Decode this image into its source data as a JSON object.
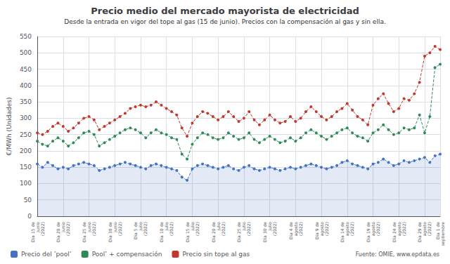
{
  "chart_data": {
    "type": "line",
    "title": "Precio medio del mercado mayorista de electricidad",
    "subtitle": "Desde la entrada en vigor del tope al gas (15 de junio). Precios con la compensación al gas y sin ella.",
    "ylabel": "€/MWh (Unidades)",
    "source": "Fuente: OMIE, www.epdata.es",
    "categories": [
      "Día 15 de\njunio\n(2022)",
      null,
      null,
      null,
      null,
      "Día 20 de\njunio\n(2022)",
      null,
      null,
      null,
      null,
      "Día 25 de\njunio\n(2022)",
      null,
      null,
      null,
      null,
      "Día 30 de\njunio\n(2022)",
      null,
      null,
      null,
      null,
      "Día 5 de\njulio\n(2022)",
      null,
      null,
      null,
      null,
      "Día 10 de\njulio\n(2022)",
      null,
      null,
      null,
      null,
      "Día 15 de\njulio\n(2022)",
      null,
      null,
      null,
      null,
      "Día 20 de\njulio\n(2022)",
      null,
      null,
      null,
      null,
      "Día 25 de\njulio\n(2022)",
      null,
      null,
      null,
      null,
      "Día 30 de\njulio\n(2022)",
      null,
      null,
      null,
      null,
      "Día 4 de\nagosto\n(2022)",
      null,
      null,
      null,
      null,
      "Día 9 de\nagosto\n(2022)",
      null,
      null,
      null,
      null,
      "Día 14 de\nagosto\n(2022)",
      null,
      null,
      null,
      null,
      "Día 19 de\nagosto\n(2022)",
      null,
      null,
      null,
      null,
      "Día 24 de\nagosto\n(2022)",
      null,
      null,
      null,
      null,
      "Día 29 de\nagosto\n(2022)",
      null,
      null,
      "Día 1 de\nseptiembre"
    ],
    "series": [
      {
        "name": "Precio del ’pool’",
        "color": "#4472c4",
        "type": "area",
        "values": [
          160,
          150,
          165,
          155,
          145,
          150,
          145,
          155,
          160,
          165,
          160,
          155,
          140,
          145,
          150,
          155,
          160,
          165,
          160,
          155,
          150,
          145,
          155,
          160,
          155,
          150,
          145,
          140,
          120,
          110,
          145,
          155,
          160,
          155,
          150,
          145,
          150,
          155,
          145,
          140,
          150,
          155,
          145,
          140,
          145,
          150,
          145,
          140,
          145,
          150,
          145,
          150,
          155,
          160,
          155,
          150,
          145,
          150,
          155,
          165,
          170,
          160,
          155,
          150,
          145,
          160,
          165,
          175,
          165,
          155,
          160,
          170,
          165,
          170,
          175,
          180,
          165,
          185,
          190
        ]
      },
      {
        "name": "Pool’ + compensación",
        "color": "#2e8b57",
        "type": "line",
        "values": [
          230,
          220,
          215,
          230,
          240,
          230,
          215,
          225,
          240,
          255,
          260,
          250,
          215,
          225,
          235,
          245,
          255,
          265,
          270,
          265,
          255,
          240,
          255,
          265,
          255,
          250,
          240,
          235,
          190,
          175,
          220,
          240,
          255,
          250,
          240,
          235,
          240,
          255,
          245,
          235,
          240,
          255,
          235,
          225,
          235,
          245,
          235,
          225,
          230,
          240,
          230,
          240,
          255,
          265,
          255,
          245,
          235,
          245,
          255,
          265,
          270,
          255,
          245,
          240,
          230,
          255,
          265,
          280,
          265,
          250,
          255,
          270,
          265,
          270,
          310,
          255,
          305,
          455,
          465
        ]
      },
      {
        "name": "Precio sin tope al gas",
        "color": "#c0392b",
        "type": "line",
        "values": [
          255,
          250,
          260,
          275,
          285,
          275,
          260,
          270,
          285,
          300,
          305,
          295,
          265,
          275,
          285,
          295,
          305,
          315,
          330,
          335,
          340,
          335,
          340,
          350,
          340,
          330,
          320,
          310,
          270,
          245,
          285,
          305,
          320,
          315,
          305,
          295,
          305,
          320,
          305,
          290,
          300,
          320,
          295,
          280,
          295,
          310,
          295,
          285,
          290,
          305,
          290,
          300,
          320,
          335,
          320,
          305,
          295,
          305,
          320,
          330,
          345,
          325,
          305,
          295,
          280,
          340,
          360,
          375,
          345,
          320,
          330,
          360,
          355,
          375,
          410,
          490,
          500,
          520,
          510
        ]
      }
    ],
    "marker": "circle",
    "line_style": "dashed",
    "ylim": [
      0,
      550
    ],
    "yticks": [
      0,
      50,
      100,
      150,
      200,
      250,
      300,
      350,
      400,
      450,
      500,
      550
    ],
    "grid": true,
    "legend": "bottom left"
  }
}
